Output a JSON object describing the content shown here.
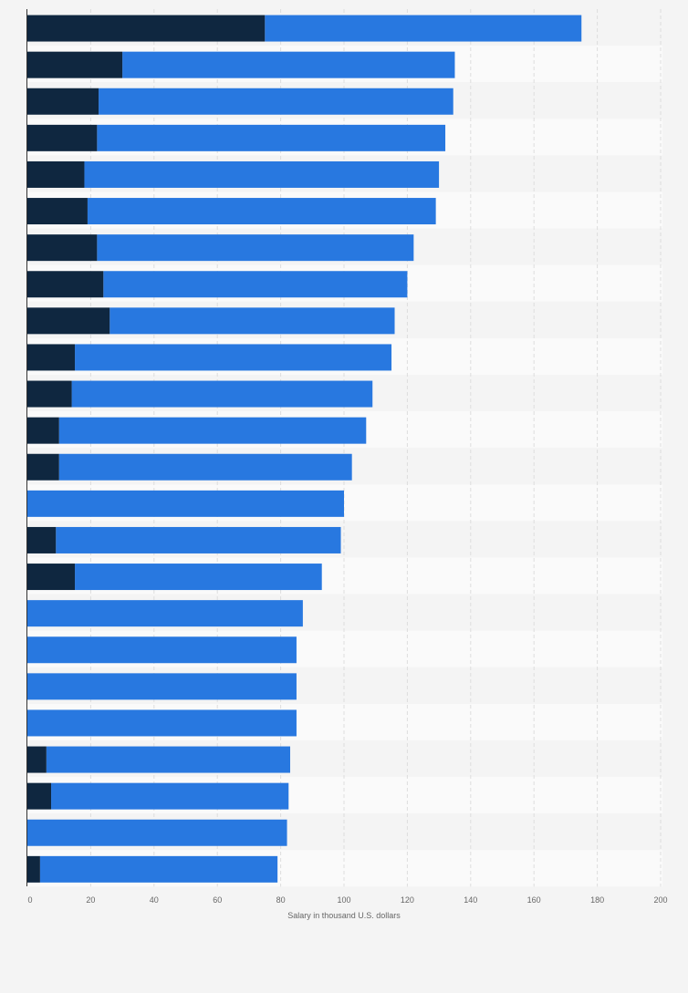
{
  "chart_data": {
    "type": "bar",
    "orientation": "horizontal",
    "stacked": true,
    "title": "",
    "xlabel": "Salary in thousand U.S. dollars",
    "ylabel": "",
    "xlim": [
      0,
      200
    ],
    "x_ticks": [
      "0",
      "20",
      "40",
      "60",
      "80",
      "100",
      "120",
      "140",
      "160",
      "180",
      "200"
    ],
    "grid": true,
    "legend": "none",
    "colors": {
      "segment_1": "#0f2740",
      "segment_2": "#2878e0"
    },
    "rows": [
      {
        "segment_1": 75,
        "total": 175
      },
      {
        "segment_1": 30,
        "total": 135
      },
      {
        "segment_1": 22.5,
        "total": 134.5
      },
      {
        "segment_1": 22,
        "total": 132
      },
      {
        "segment_1": 18,
        "total": 130
      },
      {
        "segment_1": 19,
        "total": 129
      },
      {
        "segment_1": 22,
        "total": 122
      },
      {
        "segment_1": 24,
        "total": 120
      },
      {
        "segment_1": 26,
        "total": 116
      },
      {
        "segment_1": 15,
        "total": 115
      },
      {
        "segment_1": 14,
        "total": 109
      },
      {
        "segment_1": 10,
        "total": 107
      },
      {
        "segment_1": 10,
        "total": 102.5
      },
      {
        "segment_1": 0,
        "total": 100
      },
      {
        "segment_1": 9,
        "total": 99
      },
      {
        "segment_1": 15,
        "total": 93
      },
      {
        "segment_1": 0,
        "total": 87
      },
      {
        "segment_1": 0,
        "total": 85
      },
      {
        "segment_1": 0,
        "total": 85
      },
      {
        "segment_1": 0,
        "total": 85
      },
      {
        "segment_1": 6,
        "total": 83
      },
      {
        "segment_1": 7.5,
        "total": 82.5
      },
      {
        "segment_1": 0,
        "total": 82
      },
      {
        "segment_1": 4,
        "total": 79
      }
    ]
  }
}
